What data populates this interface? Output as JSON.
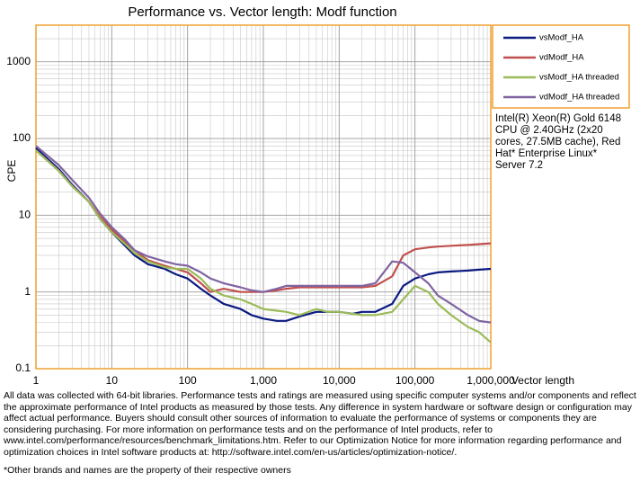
{
  "chart_data": {
    "type": "line",
    "title": "Performance vs. Vector length: Modf function",
    "x_label": "Vector length",
    "y_label": "CPE",
    "x": [
      1,
      2,
      3,
      5,
      7,
      10,
      15,
      20,
      30,
      50,
      70,
      100,
      150,
      200,
      300,
      500,
      700,
      1000,
      1500,
      2000,
      3000,
      5000,
      7000,
      10000,
      15000,
      20000,
      30000,
      50000,
      70000,
      100000,
      150000,
      200000,
      300000,
      500000,
      700000,
      1000000
    ],
    "series": [
      {
        "name": "vsModf_HA",
        "color": "#0b1a80",
        "values": [
          75,
          40,
          25,
          15,
          9,
          6,
          4,
          3,
          2.3,
          2,
          1.7,
          1.5,
          1.1,
          0.9,
          0.7,
          0.6,
          0.5,
          0.45,
          0.42,
          0.42,
          0.48,
          0.55,
          0.55,
          0.55,
          0.52,
          0.55,
          0.55,
          0.7,
          1.2,
          1.5,
          1.7,
          1.8,
          1.85,
          1.9,
          1.95,
          2
        ]
      },
      {
        "name": "vdModf_HA",
        "color": "#c0504d",
        "values": [
          70,
          38,
          24,
          15,
          9.5,
          6.5,
          4.5,
          3.5,
          2.6,
          2.2,
          2,
          1.8,
          1.3,
          1,
          1.1,
          1,
          1,
          1,
          1.05,
          1.1,
          1.15,
          1.15,
          1.15,
          1.15,
          1.15,
          1.15,
          1.2,
          1.6,
          3,
          3.6,
          3.8,
          3.9,
          4,
          4.1,
          4.2,
          4.3
        ]
      },
      {
        "name": "vsModf_HA threaded",
        "color": "#9bbb59",
        "values": [
          70,
          38,
          24,
          15,
          9,
          6,
          4.2,
          3.2,
          2.5,
          2.1,
          2,
          2,
          1.5,
          1.1,
          0.9,
          0.8,
          0.7,
          0.6,
          0.57,
          0.55,
          0.5,
          0.6,
          0.55,
          0.55,
          0.52,
          0.5,
          0.5,
          0.55,
          0.8,
          1.2,
          1,
          0.7,
          0.5,
          0.35,
          0.3,
          0.22
        ]
      },
      {
        "name": "vdModf_HA threaded",
        "color": "#8064a2",
        "values": [
          80,
          45,
          29,
          17,
          10.5,
          7,
          4.8,
          3.5,
          2.9,
          2.5,
          2.3,
          2.2,
          1.8,
          1.5,
          1.3,
          1.15,
          1.05,
          1,
          1.1,
          1.2,
          1.2,
          1.2,
          1.2,
          1.2,
          1.2,
          1.2,
          1.3,
          2.5,
          2.4,
          1.8,
          1.3,
          0.9,
          0.7,
          0.5,
          0.42,
          0.4
        ]
      }
    ],
    "log_x": true,
    "log_y": true,
    "xlim": [
      1,
      1000000
    ],
    "ylim": [
      0.1,
      3000
    ],
    "xticks": [
      1,
      10,
      100,
      {
        "value": 1000,
        "label": "1,000"
      },
      {
        "value": 10000,
        "label": "10,000"
      },
      {
        "value": 100000,
        "label": "100,000"
      },
      {
        "value": 1000000,
        "label": "1,000,000"
      }
    ],
    "yticks": [
      0.1,
      1,
      10,
      100,
      1000
    ],
    "grid": true,
    "legend": "right",
    "annotation": "Intel(R) Xeon(R) Gold 6148 CPU @ 2.40GHz (2x20 cores, 27.5MB cache), Red Hat* Enterprise Linux* Server 7.2",
    "notes": [
      "All data was collected with 64-bit libraries. Performance tests and ratings are measured using specific computer systems and/or components and reflect the approximate performance of Intel products as measured by those tests. Any difference in system hardware or software design or configuration may affect actual performance. Buyers should consult other sources of information to evaluate the performance of systems or components they are considering purchasing. For more information on performance tests and on the performance of Intel products, refer to www.intel.com/performance/resources/benchmark_limitations.htm. Refer to our Optimization Notice for more information regarding performance and optimization choices in Intel software products at: http://software.intel.com/en-us/articles/optimization-notice/.",
      "*Other brands and names are the property of their respective owners"
    ]
  }
}
